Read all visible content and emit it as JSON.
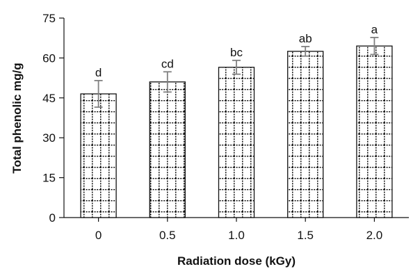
{
  "chart_data": {
    "type": "bar",
    "categories": [
      "0",
      "0.5",
      "1.0",
      "1.5",
      "2.0"
    ],
    "values": [
      46.5,
      51,
      56.5,
      62.5,
      64.5
    ],
    "error": [
      5,
      3.8,
      2.6,
      1.8,
      3.2
    ],
    "significance_labels": [
      "d",
      "cd",
      "bc",
      "ab",
      "a"
    ],
    "xlabel": "Radiation dose (kGy)",
    "ylabel": "Total phenolic mg/g",
    "ylim": [
      0,
      75
    ],
    "yticks": [
      "0",
      "15",
      "30",
      "45",
      "60",
      "75"
    ],
    "grid": false,
    "colors": {
      "bar_fill": "#ffffff",
      "bar_stroke": "#111111",
      "pattern": "#111111",
      "error_bar": "#808080",
      "axis": "#111111"
    }
  }
}
